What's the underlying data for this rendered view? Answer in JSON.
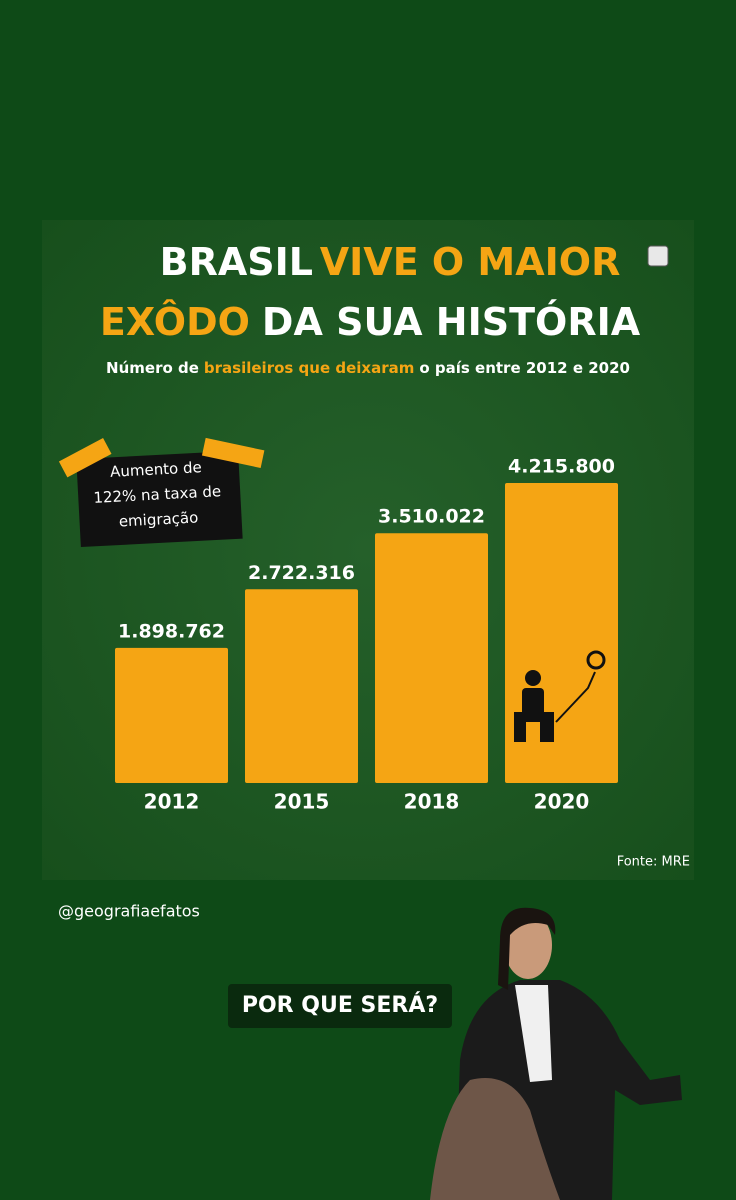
{
  "chart_data": {
    "type": "bar",
    "title": [
      {
        "text": "BRASIL",
        "color": "#ffffff"
      },
      {
        "text": "VIVE O MAIOR",
        "color": "#f5a514"
      },
      {
        "text": "EXÔDO",
        "color": "#f5a514"
      },
      {
        "text": "DA SUA HISTÓRIA",
        "color": "#ffffff"
      }
    ],
    "subtitle": [
      {
        "text": "Número de",
        "color": "#ffffff"
      },
      {
        "text": "brasileiros que deixaram",
        "color": "#f5a514"
      },
      {
        "text": "o país entre 2012 e 2020",
        "color": "#ffffff"
      }
    ],
    "categories": [
      "2012",
      "2015",
      "2018",
      "2020"
    ],
    "values": [
      1898762,
      2722316,
      3510022,
      4215800
    ],
    "value_labels": [
      "1.898.762",
      "2.722.316",
      "3.510.022",
      "4.215.800"
    ],
    "color": "#f5a514",
    "annotation": [
      "Aumento de",
      "122% na taxa de",
      "emigração"
    ],
    "source": "Fonte: MRE"
  },
  "story": {
    "username": "@geografiaefatos",
    "caption": "POR QUE SERÁ?"
  }
}
